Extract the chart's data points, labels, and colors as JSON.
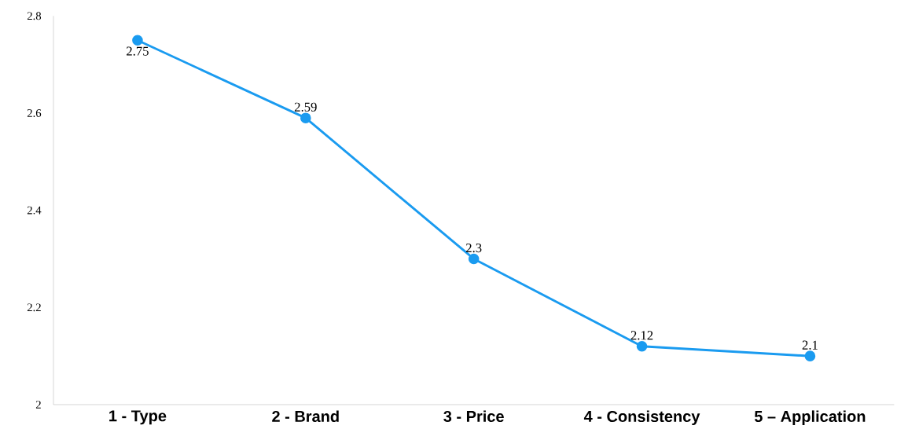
{
  "chart_data": {
    "type": "line",
    "categories": [
      "1 - Type",
      "2 - Brand",
      "3 - Price",
      "4 - Consistency",
      "5 – Application"
    ],
    "values": [
      2.75,
      2.59,
      2.3,
      2.12,
      2.1
    ],
    "color": "#1a9bf0",
    "ylim": [
      2,
      2.8
    ],
    "yticks": [
      2,
      2.2,
      2.4,
      2.6,
      2.8
    ],
    "data_labels": true,
    "marker": "circle",
    "line_style": "solid"
  }
}
